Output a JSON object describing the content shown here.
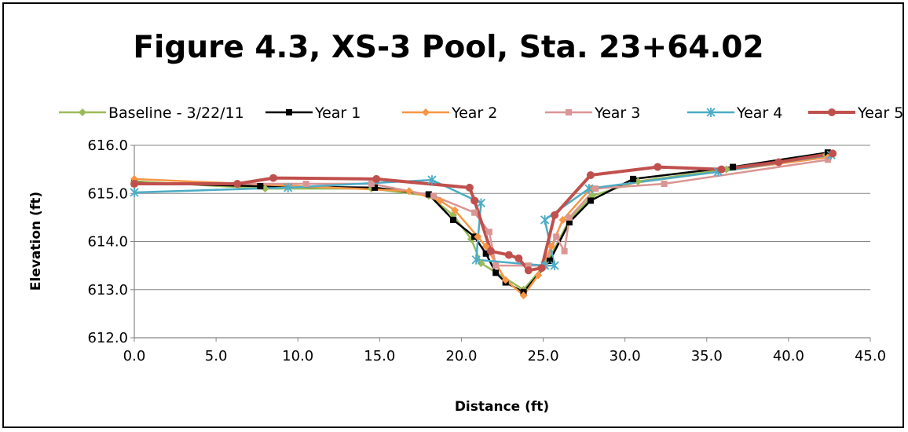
{
  "chart_data": {
    "type": "line",
    "title": "Figure 4.3, XS-3 Pool, Sta. 23+64.02",
    "xlabel": "Distance (ft)",
    "ylabel": "Elevation (ft)",
    "xlim": [
      0,
      45
    ],
    "ylim": [
      612,
      616
    ],
    "xticks": [
      0,
      5,
      10,
      15,
      20,
      25,
      30,
      35,
      40,
      45
    ],
    "yticks": [
      612,
      613,
      614,
      615,
      616
    ],
    "xtick_labels": [
      "0.0",
      "5.0",
      "10.0",
      "15.0",
      "20.0",
      "25.0",
      "30.0",
      "35.0",
      "40.0",
      "45.0"
    ],
    "ytick_labels": [
      "612.0",
      "613.0",
      "614.0",
      "615.0",
      "616.0"
    ],
    "grid": "horizontal",
    "legend_position": "top",
    "series": [
      {
        "name": "Baseline - 3/22/11",
        "color": "#9BBB59",
        "marker": "diamond",
        "x": [
          0,
          8,
          14.5,
          18,
          19.5,
          20.6,
          21.2,
          23.8,
          25.3,
          26.6,
          28,
          30.8,
          36.2,
          42.3
        ],
        "y": [
          615.25,
          615.1,
          615.1,
          614.95,
          614.55,
          614.05,
          613.55,
          613.0,
          613.6,
          614.45,
          614.95,
          615.25,
          615.5,
          615.8
        ]
      },
      {
        "name": "Year 1",
        "color": "#000000",
        "marker": "square",
        "x": [
          0,
          7.7,
          14.7,
          18,
          19.5,
          20.8,
          21.5,
          22.1,
          22.7,
          23.8,
          25.4,
          26.6,
          27.9,
          30.5,
          36.6,
          42.4
        ],
        "y": [
          615.22,
          615.15,
          615.12,
          614.98,
          614.45,
          614.1,
          613.75,
          613.35,
          613.15,
          612.95,
          613.6,
          614.4,
          614.85,
          615.3,
          615.55,
          615.85
        ]
      },
      {
        "name": "Year 2",
        "color": "#F79646",
        "marker": "diamond",
        "x": [
          0,
          16.8,
          18.7,
          19.6,
          21.0,
          21.5,
          22.7,
          23.8,
          24.7,
          25.5,
          26.2,
          27.9,
          42.4
        ],
        "y": [
          615.3,
          615.05,
          614.85,
          614.65,
          614.1,
          613.9,
          613.2,
          612.88,
          613.3,
          613.9,
          614.45,
          615.1,
          615.75
        ]
      },
      {
        "name": "Year 3",
        "color": "#DA9694",
        "marker": "square",
        "x": [
          0,
          10.5,
          14.5,
          18.3,
          20.8,
          21.7,
          22.1,
          24.1,
          25.1,
          25.8,
          26.3,
          26.6,
          28.2,
          32.4,
          42.4
        ],
        "y": [
          615.2,
          615.2,
          615.2,
          614.95,
          614.6,
          614.2,
          613.5,
          613.5,
          613.5,
          614.1,
          613.8,
          614.5,
          615.1,
          615.2,
          615.7
        ]
      },
      {
        "name": "Year 4",
        "color": "#4BACC6",
        "marker": "star",
        "x": [
          0,
          9.4,
          18.2,
          21.2,
          20.9,
          25.1,
          25.7,
          25.1,
          27.8,
          35.7,
          42.6
        ],
        "y": [
          615.02,
          615.12,
          615.28,
          614.8,
          613.62,
          613.5,
          613.5,
          614.45,
          615.1,
          615.45,
          615.8
        ]
      },
      {
        "name": "Year 5",
        "color": "#C0504D",
        "marker": "circle",
        "x": [
          0,
          6.3,
          8.5,
          14.8,
          20.5,
          20.8,
          21.8,
          22.9,
          23.5,
          24.1,
          24.9,
          25.7,
          27.9,
          32.0,
          35.9,
          39.4,
          42.7
        ],
        "y": [
          615.2,
          615.2,
          615.32,
          615.3,
          615.12,
          614.85,
          613.8,
          613.72,
          613.65,
          613.4,
          613.45,
          614.55,
          615.38,
          615.55,
          615.5,
          615.65,
          615.83
        ]
      }
    ]
  }
}
